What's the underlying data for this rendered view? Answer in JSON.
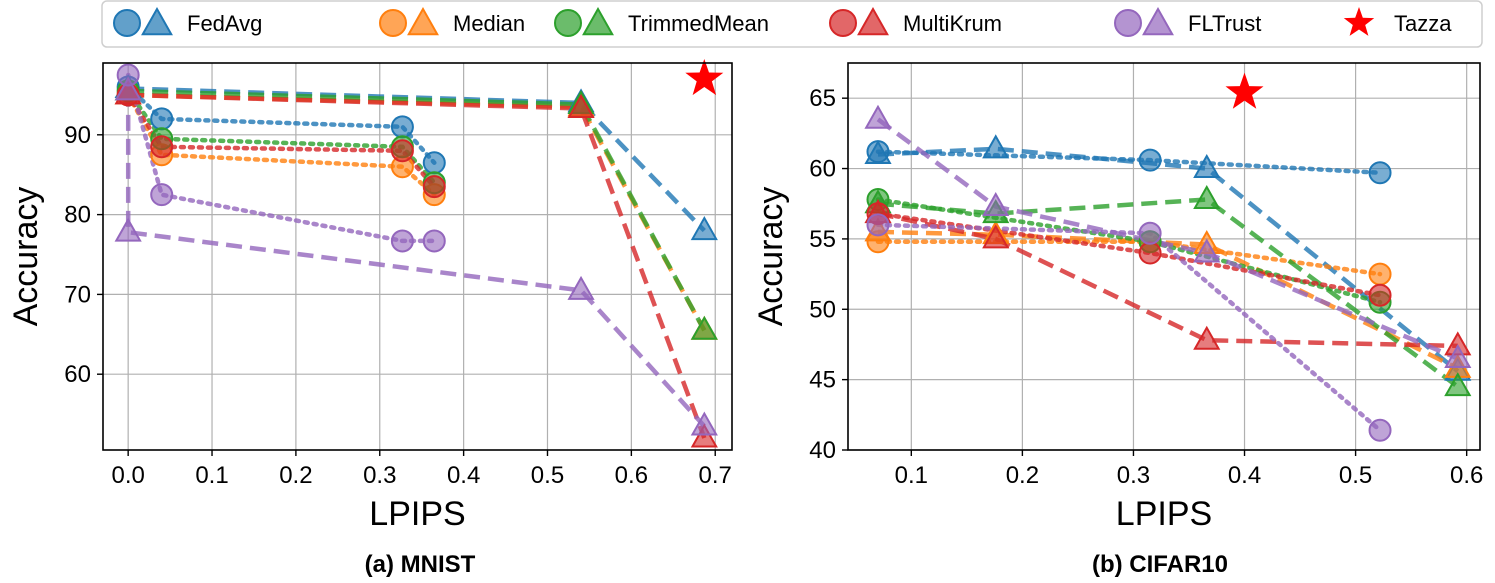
{
  "legend": {
    "items": [
      {
        "label": "FedAvg",
        "color": "#1f77b4",
        "marker": "circle-triangle"
      },
      {
        "label": "Median",
        "color": "#ff7f0e",
        "marker": "circle-triangle"
      },
      {
        "label": "TrimmedMean",
        "color": "#2ca02c",
        "marker": "circle-triangle"
      },
      {
        "label": "MultiKrum",
        "color": "#d62728",
        "marker": "circle-triangle"
      },
      {
        "label": "FLTrust",
        "color": "#9467bd",
        "marker": "circle-triangle"
      },
      {
        "label": "Tazza",
        "color": "#ff0000",
        "marker": "star"
      }
    ]
  },
  "captions": {
    "a": "(a) MNIST",
    "b": "(b) CIFAR10"
  },
  "chart_data": [
    {
      "type": "line",
      "name": "MNIST",
      "xlabel": "LPIPS",
      "ylabel": "Accuracy",
      "xlim": [
        -0.03,
        0.72
      ],
      "ylim": [
        50.5,
        99
      ],
      "xticks": [
        "0.0",
        "0.1",
        "0.2",
        "0.3",
        "0.4",
        "0.5",
        "0.6",
        "0.7"
      ],
      "xtick_values": [
        0.0,
        0.1,
        0.2,
        0.3,
        0.4,
        0.5,
        0.6,
        0.7
      ],
      "yticks": [
        "60",
        "70",
        "80",
        "90"
      ],
      "ytick_values": [
        60,
        70,
        80,
        90
      ],
      "grid": true,
      "series": [
        {
          "name": "FedAvg",
          "color": "#1f77b4",
          "marker": "circle",
          "style": "dotted",
          "x": [
            0.0,
            0.04,
            0.327,
            0.365
          ],
          "y": [
            96.0,
            92.0,
            91.0,
            86.5
          ]
        },
        {
          "name": "FedAvg",
          "color": "#1f77b4",
          "marker": "triangle",
          "style": "dashed",
          "x": [
            0.0,
            0.54,
            0.687
          ],
          "y": [
            95.8,
            94.0,
            78.0
          ]
        },
        {
          "name": "Median",
          "color": "#ff7f0e",
          "marker": "circle",
          "style": "dotted",
          "x": [
            0.0,
            0.04,
            0.327,
            0.365
          ],
          "y": [
            95.0,
            87.5,
            86.0,
            82.5
          ]
        },
        {
          "name": "Median",
          "color": "#ff7f0e",
          "marker": "triangle",
          "style": "dashed",
          "x": [
            0.0,
            0.54,
            0.687
          ],
          "y": [
            95.0,
            93.5,
            65.5
          ]
        },
        {
          "name": "TrimmedMean",
          "color": "#2ca02c",
          "marker": "circle",
          "style": "dotted",
          "x": [
            0.0,
            0.04,
            0.327,
            0.365
          ],
          "y": [
            95.5,
            89.5,
            88.5,
            84.0
          ]
        },
        {
          "name": "TrimmedMean",
          "color": "#2ca02c",
          "marker": "triangle",
          "style": "dashed",
          "x": [
            0.0,
            0.54,
            0.687
          ],
          "y": [
            95.5,
            93.8,
            65.5
          ]
        },
        {
          "name": "MultiKrum",
          "color": "#d62728",
          "marker": "circle",
          "style": "dotted",
          "x": [
            0.0,
            0.04,
            0.327,
            0.365
          ],
          "y": [
            95.0,
            88.5,
            88.0,
            83.5
          ]
        },
        {
          "name": "MultiKrum",
          "color": "#d62728",
          "marker": "triangle",
          "style": "dashed",
          "x": [
            0.0,
            0.54,
            0.687
          ],
          "y": [
            95.0,
            93.3,
            52.0
          ]
        },
        {
          "name": "FLTrust",
          "color": "#9467bd",
          "marker": "circle",
          "style": "dotted",
          "x": [
            0.0,
            0.04,
            0.327,
            0.365
          ],
          "y": [
            97.5,
            82.5,
            76.7,
            76.7
          ]
        },
        {
          "name": "FLTrust",
          "color": "#9467bd",
          "marker": "triangle",
          "style": "dashed",
          "x": [
            0.0,
            0.0,
            0.54,
            0.687
          ],
          "y": [
            95.5,
            77.8,
            70.5,
            53.5
          ]
        },
        {
          "name": "Tazza",
          "color": "#ff0000",
          "marker": "star",
          "style": "none",
          "x": [
            0.687
          ],
          "y": [
            97.0
          ]
        }
      ]
    },
    {
      "type": "line",
      "name": "CIFAR10",
      "xlabel": "LPIPS",
      "ylabel": "Accuracy",
      "xlim": [
        0.043,
        0.612
      ],
      "ylim": [
        40,
        67.5
      ],
      "xticks": [
        "0.1",
        "0.2",
        "0.3",
        "0.4",
        "0.5",
        "0.6"
      ],
      "xtick_values": [
        0.1,
        0.2,
        0.3,
        0.4,
        0.5,
        0.6
      ],
      "yticks": [
        "40",
        "45",
        "50",
        "55",
        "60",
        "65"
      ],
      "ytick_values": [
        40,
        45,
        50,
        55,
        60,
        65
      ],
      "grid": true,
      "series": [
        {
          "name": "FedAvg",
          "color": "#1f77b4",
          "marker": "circle",
          "style": "dotted",
          "x": [
            0.07,
            0.315,
            0.522
          ],
          "y": [
            61.2,
            60.6,
            59.7
          ]
        },
        {
          "name": "FedAvg",
          "color": "#1f77b4",
          "marker": "triangle",
          "style": "dashed",
          "x": [
            0.07,
            0.176,
            0.366,
            0.592
          ],
          "y": [
            61.0,
            61.4,
            60.0,
            45.6
          ]
        },
        {
          "name": "Median",
          "color": "#ff7f0e",
          "marker": "circle",
          "style": "dotted",
          "x": [
            0.07,
            0.315,
            0.522
          ],
          "y": [
            54.8,
            54.8,
            52.5
          ]
        },
        {
          "name": "Median",
          "color": "#ff7f0e",
          "marker": "triangle",
          "style": "dashed",
          "x": [
            0.07,
            0.176,
            0.366,
            0.592
          ],
          "y": [
            55.5,
            55.3,
            54.6,
            45.8
          ]
        },
        {
          "name": "TrimmedMean",
          "color": "#2ca02c",
          "marker": "circle",
          "style": "dotted",
          "x": [
            0.07,
            0.315,
            0.522
          ],
          "y": [
            57.8,
            54.8,
            50.5
          ]
        },
        {
          "name": "TrimmedMean",
          "color": "#2ca02c",
          "marker": "triangle",
          "style": "dashed",
          "x": [
            0.07,
            0.176,
            0.366,
            0.592
          ],
          "y": [
            57.5,
            56.8,
            57.8,
            44.5
          ]
        },
        {
          "name": "MultiKrum",
          "color": "#d62728",
          "marker": "circle",
          "style": "dotted",
          "x": [
            0.07,
            0.315,
            0.522
          ],
          "y": [
            56.8,
            54.0,
            51.0
          ]
        },
        {
          "name": "MultiKrum",
          "color": "#d62728",
          "marker": "triangle",
          "style": "dashed",
          "x": [
            0.07,
            0.176,
            0.366,
            0.592
          ],
          "y": [
            56.8,
            55.0,
            47.8,
            47.4
          ]
        },
        {
          "name": "FLTrust",
          "color": "#9467bd",
          "marker": "circle",
          "style": "dotted",
          "x": [
            0.07,
            0.315,
            0.522
          ],
          "y": [
            56.0,
            55.4,
            41.4
          ]
        },
        {
          "name": "FLTrust",
          "color": "#9467bd",
          "marker": "triangle",
          "style": "dashed",
          "x": [
            0.07,
            0.176,
            0.366,
            0.592
          ],
          "y": [
            63.5,
            57.3,
            54.0,
            46.5
          ]
        },
        {
          "name": "Tazza",
          "color": "#ff0000",
          "marker": "star",
          "style": "none",
          "x": [
            0.4
          ],
          "y": [
            65.4
          ]
        }
      ]
    }
  ]
}
